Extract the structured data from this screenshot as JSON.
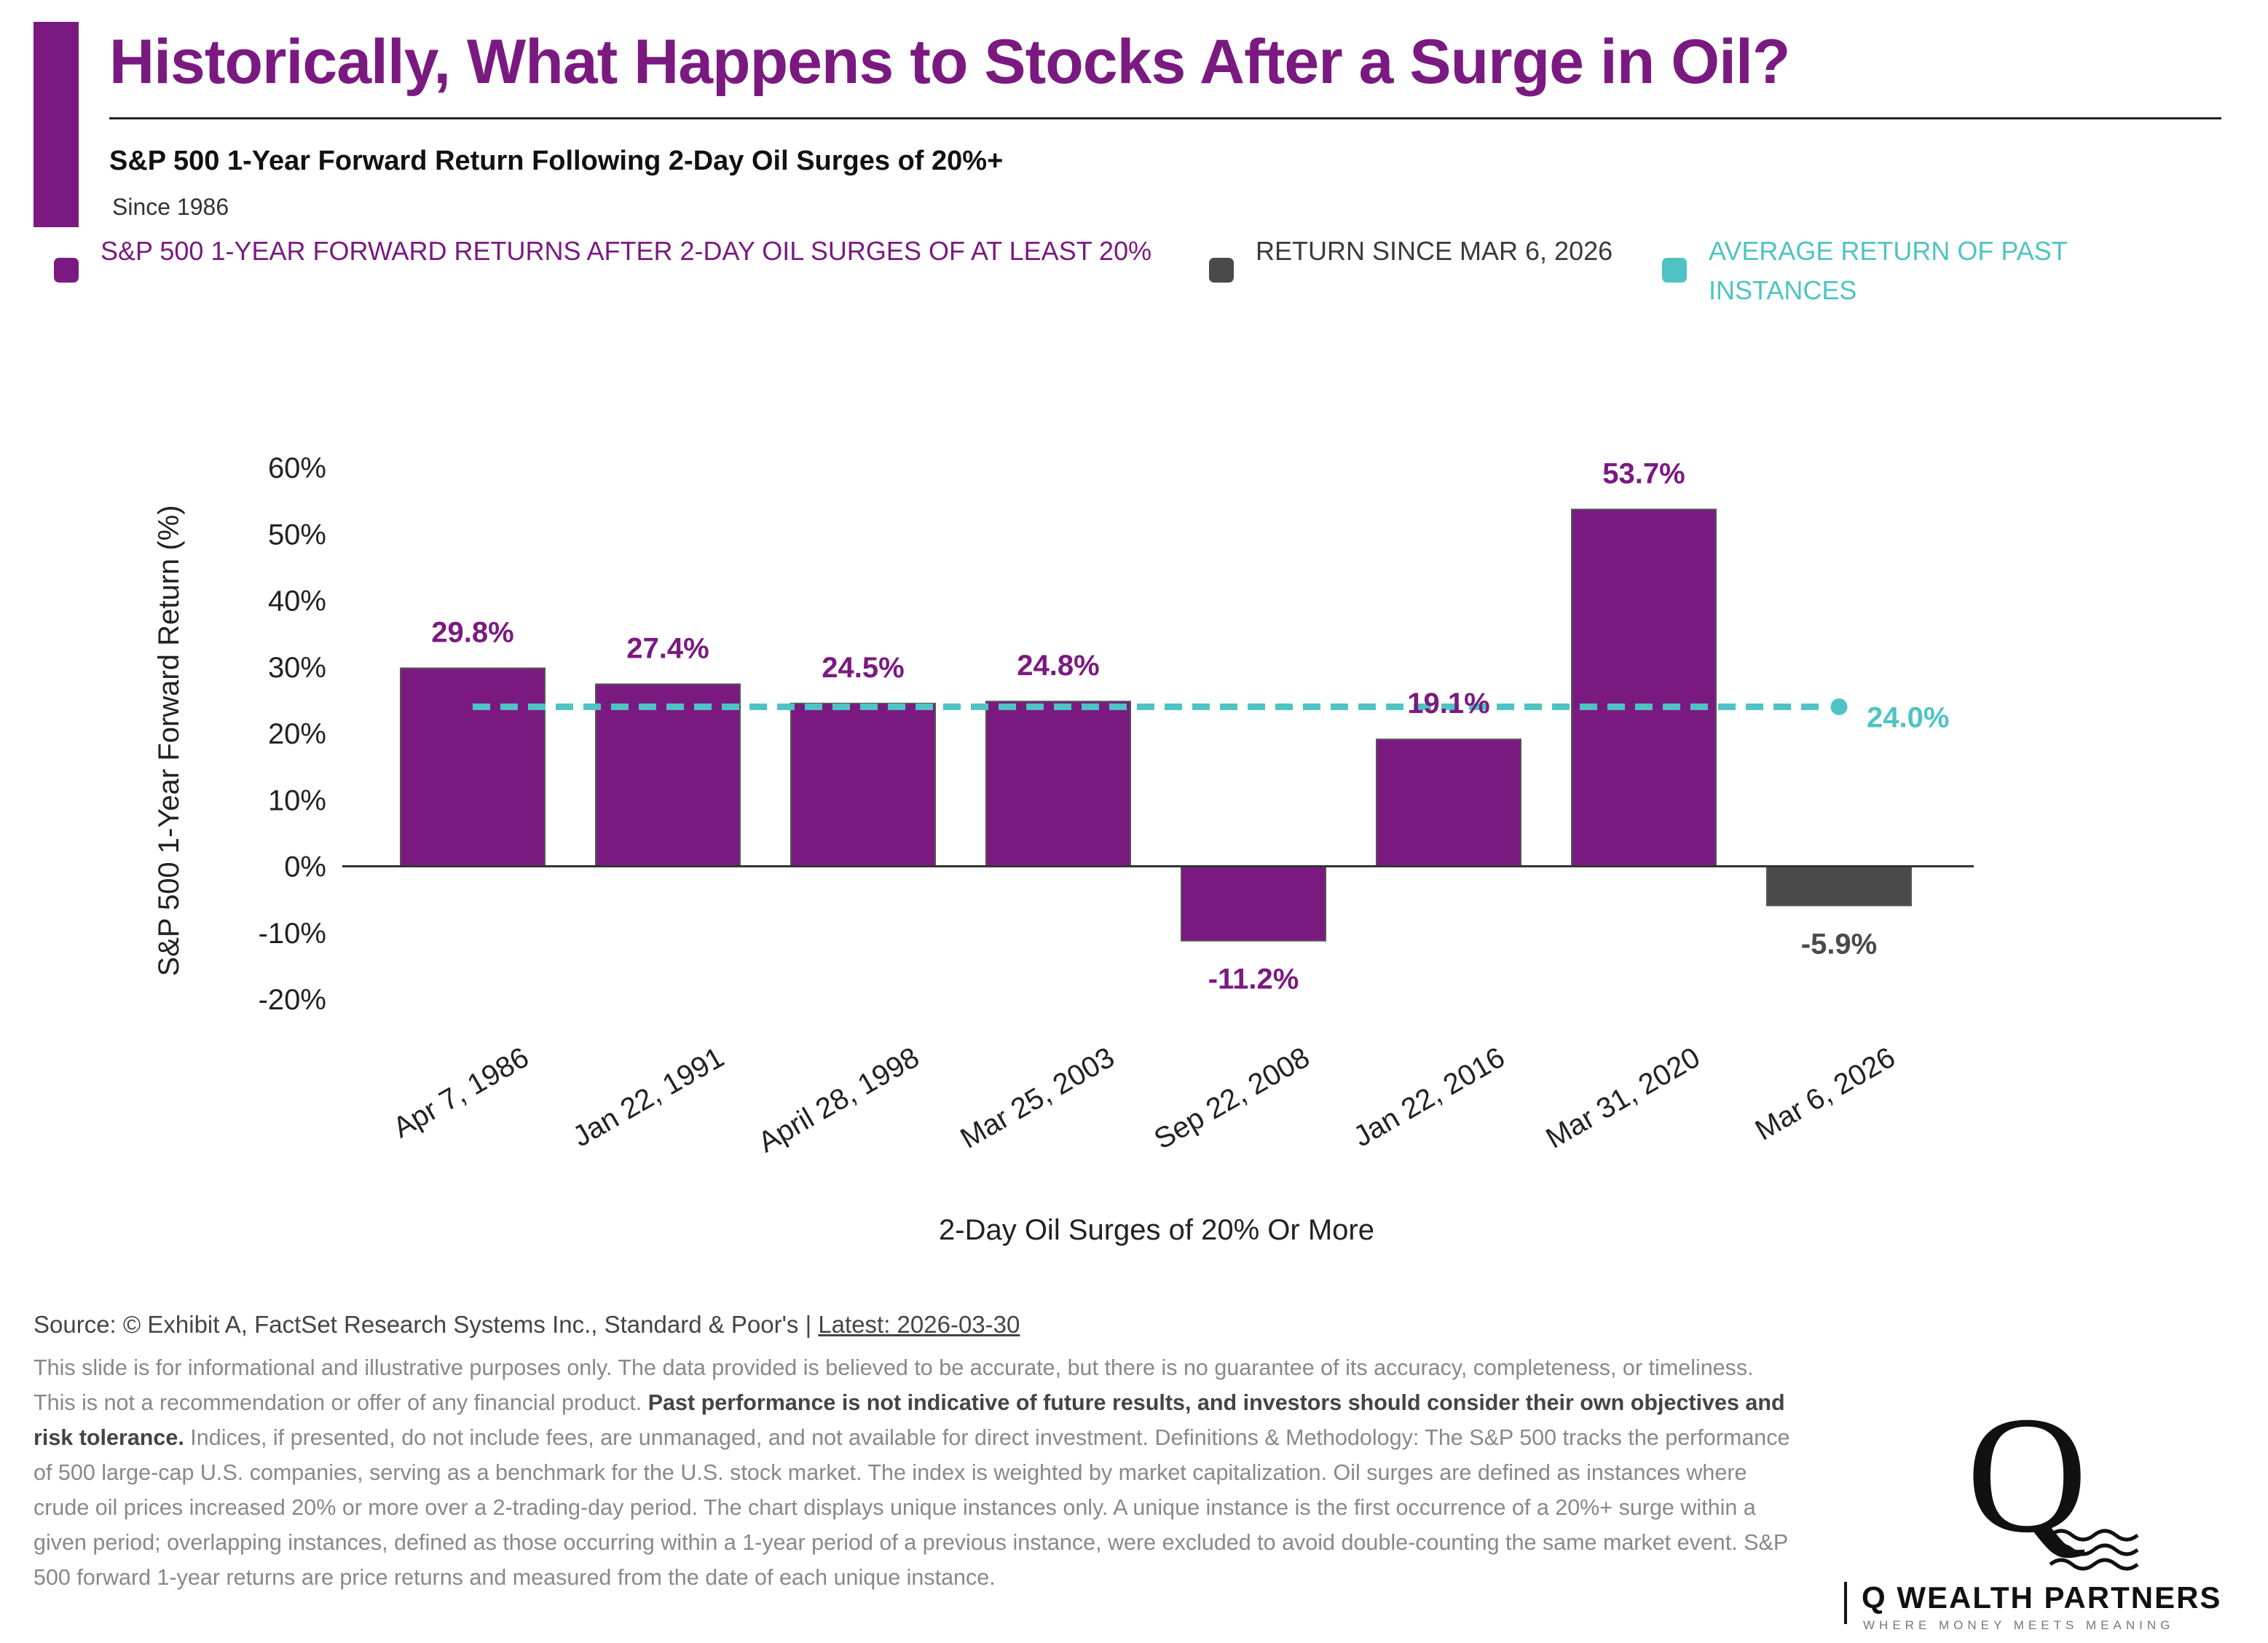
{
  "header": {
    "title": "Historically, What Happens to Stocks After a Surge in Oil?",
    "subtitle": "S&P 500 1-Year Forward Return Following 2-Day Oil Surges of 20%+",
    "since": "Since 1986"
  },
  "legend": {
    "items": [
      {
        "label": "S&P 500 1-YEAR FORWARD RETURNS AFTER 2-DAY OIL SURGES OF AT LEAST 20%",
        "color": "#7a1a80"
      },
      {
        "label": "RETURN SINCE MAR 6, 2026",
        "color": "#4a4a4a"
      },
      {
        "label": "AVERAGE RETURN OF PAST INSTANCES",
        "color": "#4fc3c3"
      }
    ]
  },
  "chart_data": {
    "type": "bar",
    "categories": [
      "Apr 7, 1986",
      "Jan 22, 1991",
      "April 28, 1998",
      "Mar 25, 2003",
      "Sep 22, 2008",
      "Jan 22, 2016",
      "Mar 31, 2020",
      "Mar 6, 2026"
    ],
    "values": [
      29.8,
      27.4,
      24.5,
      24.8,
      -11.2,
      19.1,
      53.7,
      -5.9
    ],
    "value_labels": [
      "29.8%",
      "27.4%",
      "24.5%",
      "24.8%",
      "-11.2%",
      "19.1%",
      "53.7%",
      "-5.9%"
    ],
    "bar_colors": [
      "#7a1a80",
      "#7a1a80",
      "#7a1a80",
      "#7a1a80",
      "#7a1a80",
      "#7a1a80",
      "#7a1a80",
      "#4a4a4a"
    ],
    "average": {
      "value": 24.0,
      "label": "24.0%",
      "color": "#4fc3c3"
    },
    "yticks": [
      "60%",
      "50%",
      "40%",
      "30%",
      "20%",
      "10%",
      "0%",
      "-10%",
      "-20%"
    ],
    "ytick_values": [
      60,
      50,
      40,
      30,
      20,
      10,
      0,
      -10,
      -20
    ],
    "ylim": [
      -20,
      60
    ],
    "xlabel": "2-Day Oil Surges of 20% Or More",
    "ylabel": "S&P 500 1-Year Forward Return (%)",
    "grid": false
  },
  "footer": {
    "source_prefix": "Source: © Exhibit A, FactSet Research Systems Inc., Standard & Poor's | ",
    "source_latest": "Latest: 2026-03-30",
    "disclaimer_1": "This slide is for informational and illustrative purposes only. The data provided is believed to be accurate, but there is no guarantee of its accuracy, completeness, or timeliness. This is not a recommendation or offer of any financial product. ",
    "disclaimer_bold": "Past performance is not indicative of future results, and investors should consider their own objectives and risk tolerance.",
    "disclaimer_2": " Indices, if presented, do not include fees, are unmanaged, and not available for direct investment. Definitions & Methodology: The S&P 500 tracks the performance of 500 large-cap U.S. companies, serving as a benchmark for the U.S. stock market. The index is weighted by market capitalization. Oil surges are defined as instances where crude oil prices increased 20% or more over a 2-trading-day period. The chart displays unique instances only. A unique instance is the first occurrence of a 20%+ surge within a given period; overlapping instances, defined as those occurring within a 1-year period of a previous instance, were excluded to avoid double-counting the same market event. S&P 500 forward 1-year returns are price returns and measured from the date of each unique instance."
  },
  "logo": {
    "letter": "Q",
    "name": "Q WEALTH PARTNERS",
    "tagline": "WHERE MONEY MEETS MEANING"
  }
}
